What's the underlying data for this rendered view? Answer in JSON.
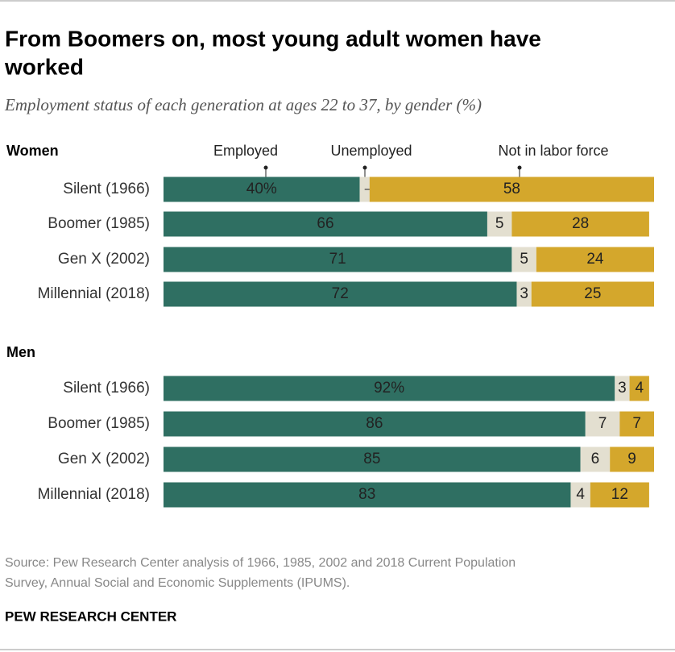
{
  "title": [
    "From Boomers on, most young adult women have",
    "worked"
  ],
  "subtitle": "Employment status of each generation at ages 22 to 37, by gender (%)",
  "source": [
    "Source: Pew Research Center analysis of 1966, 1985, 2002 and 2018 Current Population",
    "Survey, Annual Social and Economic Supplements (IPUMS)."
  ],
  "credit": "PEW RESEARCH CENTER",
  "chart_data": [
    {
      "type": "bar",
      "orientation": "horizontal",
      "stacked": true,
      "title": "Women",
      "categories": [
        "Silent (1966)",
        "Boomer (1985)",
        "Gen X (2002)",
        "Millennial (2018)"
      ],
      "xlim": [
        0,
        100
      ],
      "series": [
        {
          "name": "Employed",
          "color": "#2f6f62",
          "values": [
            40,
            66,
            71,
            72
          ],
          "value_labels": [
            "40%",
            "66",
            "71",
            "72"
          ]
        },
        {
          "name": "Unemployed",
          "color": "#e3dfd0",
          "values": [
            2,
            5,
            5,
            3
          ]
        },
        {
          "name": "Not in labor force",
          "color": "#d4a72c",
          "values": [
            58,
            28,
            24,
            25
          ]
        }
      ]
    },
    {
      "type": "bar",
      "orientation": "horizontal",
      "stacked": true,
      "title": "Men",
      "categories": [
        "Silent (1966)",
        "Boomer (1985)",
        "Gen X (2002)",
        "Millennial (2018)"
      ],
      "xlim": [
        0,
        100
      ],
      "series": [
        {
          "color": "#2f6f62",
          "values": [
            92,
            86,
            85,
            83
          ],
          "value_labels": [
            "92%",
            "86",
            "85",
            "83"
          ]
        },
        {
          "color": "#e3dfd0",
          "values": [
            3,
            7,
            6,
            4
          ]
        },
        {
          "color": "#d4a72c",
          "values": [
            4,
            7,
            9,
            12
          ]
        }
      ]
    }
  ]
}
